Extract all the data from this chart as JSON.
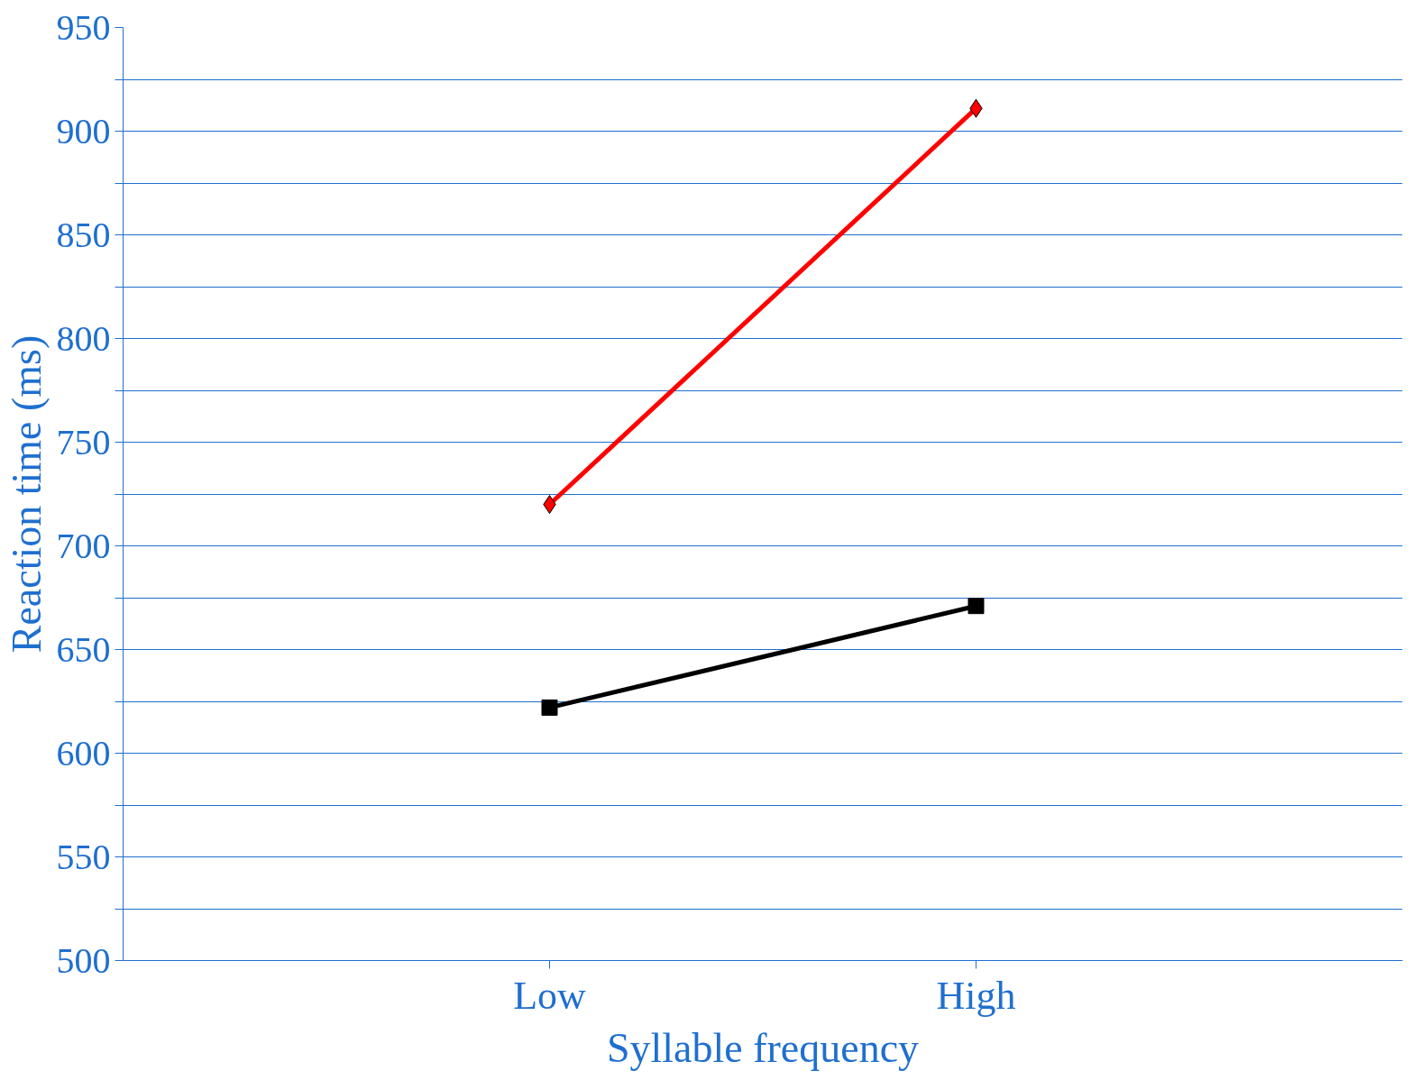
{
  "chart_data": {
    "type": "line",
    "xlabel": "Syllable frequency",
    "ylabel": "Reaction time (ms)",
    "categories": [
      "Low",
      "High"
    ],
    "series": [
      {
        "color": "#ff0000",
        "values": [
          720,
          911
        ],
        "marker": "diamond"
      },
      {
        "color": "#000000",
        "values": [
          622,
          671
        ],
        "marker": "square"
      }
    ],
    "ylim": [
      500,
      950
    ],
    "yticks": [
      500,
      {
        "value": 525,
        "label": null
      },
      550,
      {
        "value": 575,
        "label": null
      },
      600,
      {
        "value": 625,
        "label": null
      },
      650,
      {
        "value": 675,
        "label": null
      },
      700,
      {
        "value": 725,
        "label": null
      },
      750,
      {
        "value": 775,
        "label": null
      },
      800,
      {
        "value": 825,
        "label": null
      },
      850,
      {
        "value": 875,
        "label": null
      },
      900,
      {
        "value": 925,
        "label": null
      },
      950
    ],
    "grid": "y",
    "line_style": "solid"
  }
}
